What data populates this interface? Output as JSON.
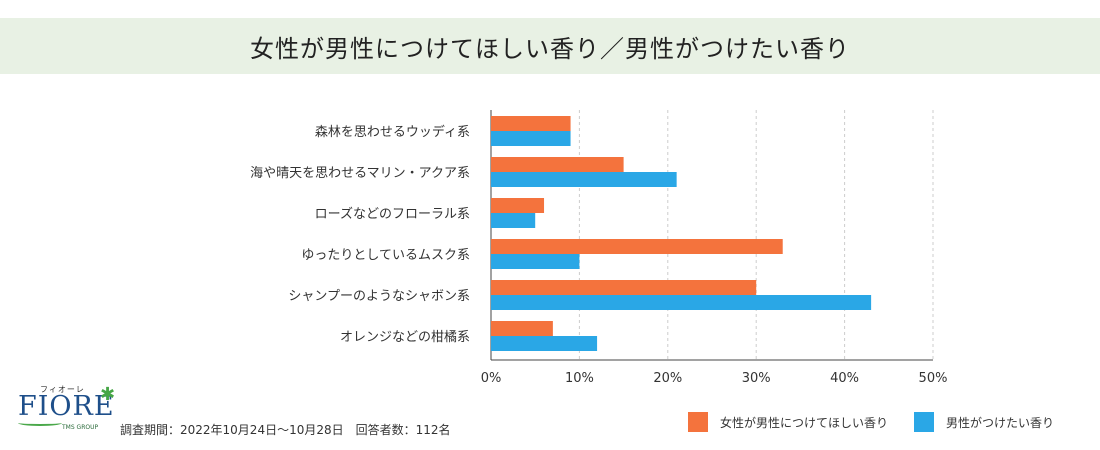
{
  "title": "女性が男性につけてほしい香り／男性がつけたい香り",
  "logo": {
    "kana": "フィオーレ",
    "name": "FIORE",
    "group": "TMS GROUP"
  },
  "survey_note": "調査期間：2022年10月24日～10月28日　回答者数：112名",
  "colors": {
    "women": "#f4733d",
    "men": "#2aa7e6",
    "grid": "#cccccc",
    "title_bg": "#e8f1e4"
  },
  "chart_data": {
    "type": "bar",
    "orientation": "horizontal",
    "categories": [
      "森林を思わせるウッディ系",
      "海や晴天を思わせるマリン・アクア系",
      "ローズなどのフローラル系",
      "ゆったりとしているムスク系",
      "シャンプーのようなシャボン系",
      "オレンジなどの柑橘系"
    ],
    "series": [
      {
        "name": "女性が男性につけてほしい香り",
        "values": [
          9,
          15,
          6,
          33,
          30,
          7
        ]
      },
      {
        "name": "男性がつけたい香り",
        "values": [
          9,
          21,
          5,
          10,
          43,
          12
        ]
      }
    ],
    "xlim": [
      0,
      50
    ],
    "xticks": [
      "0%",
      "10%",
      "20%",
      "30%",
      "40%",
      "50%"
    ],
    "grid": true,
    "legend_position": "bottom-right"
  }
}
